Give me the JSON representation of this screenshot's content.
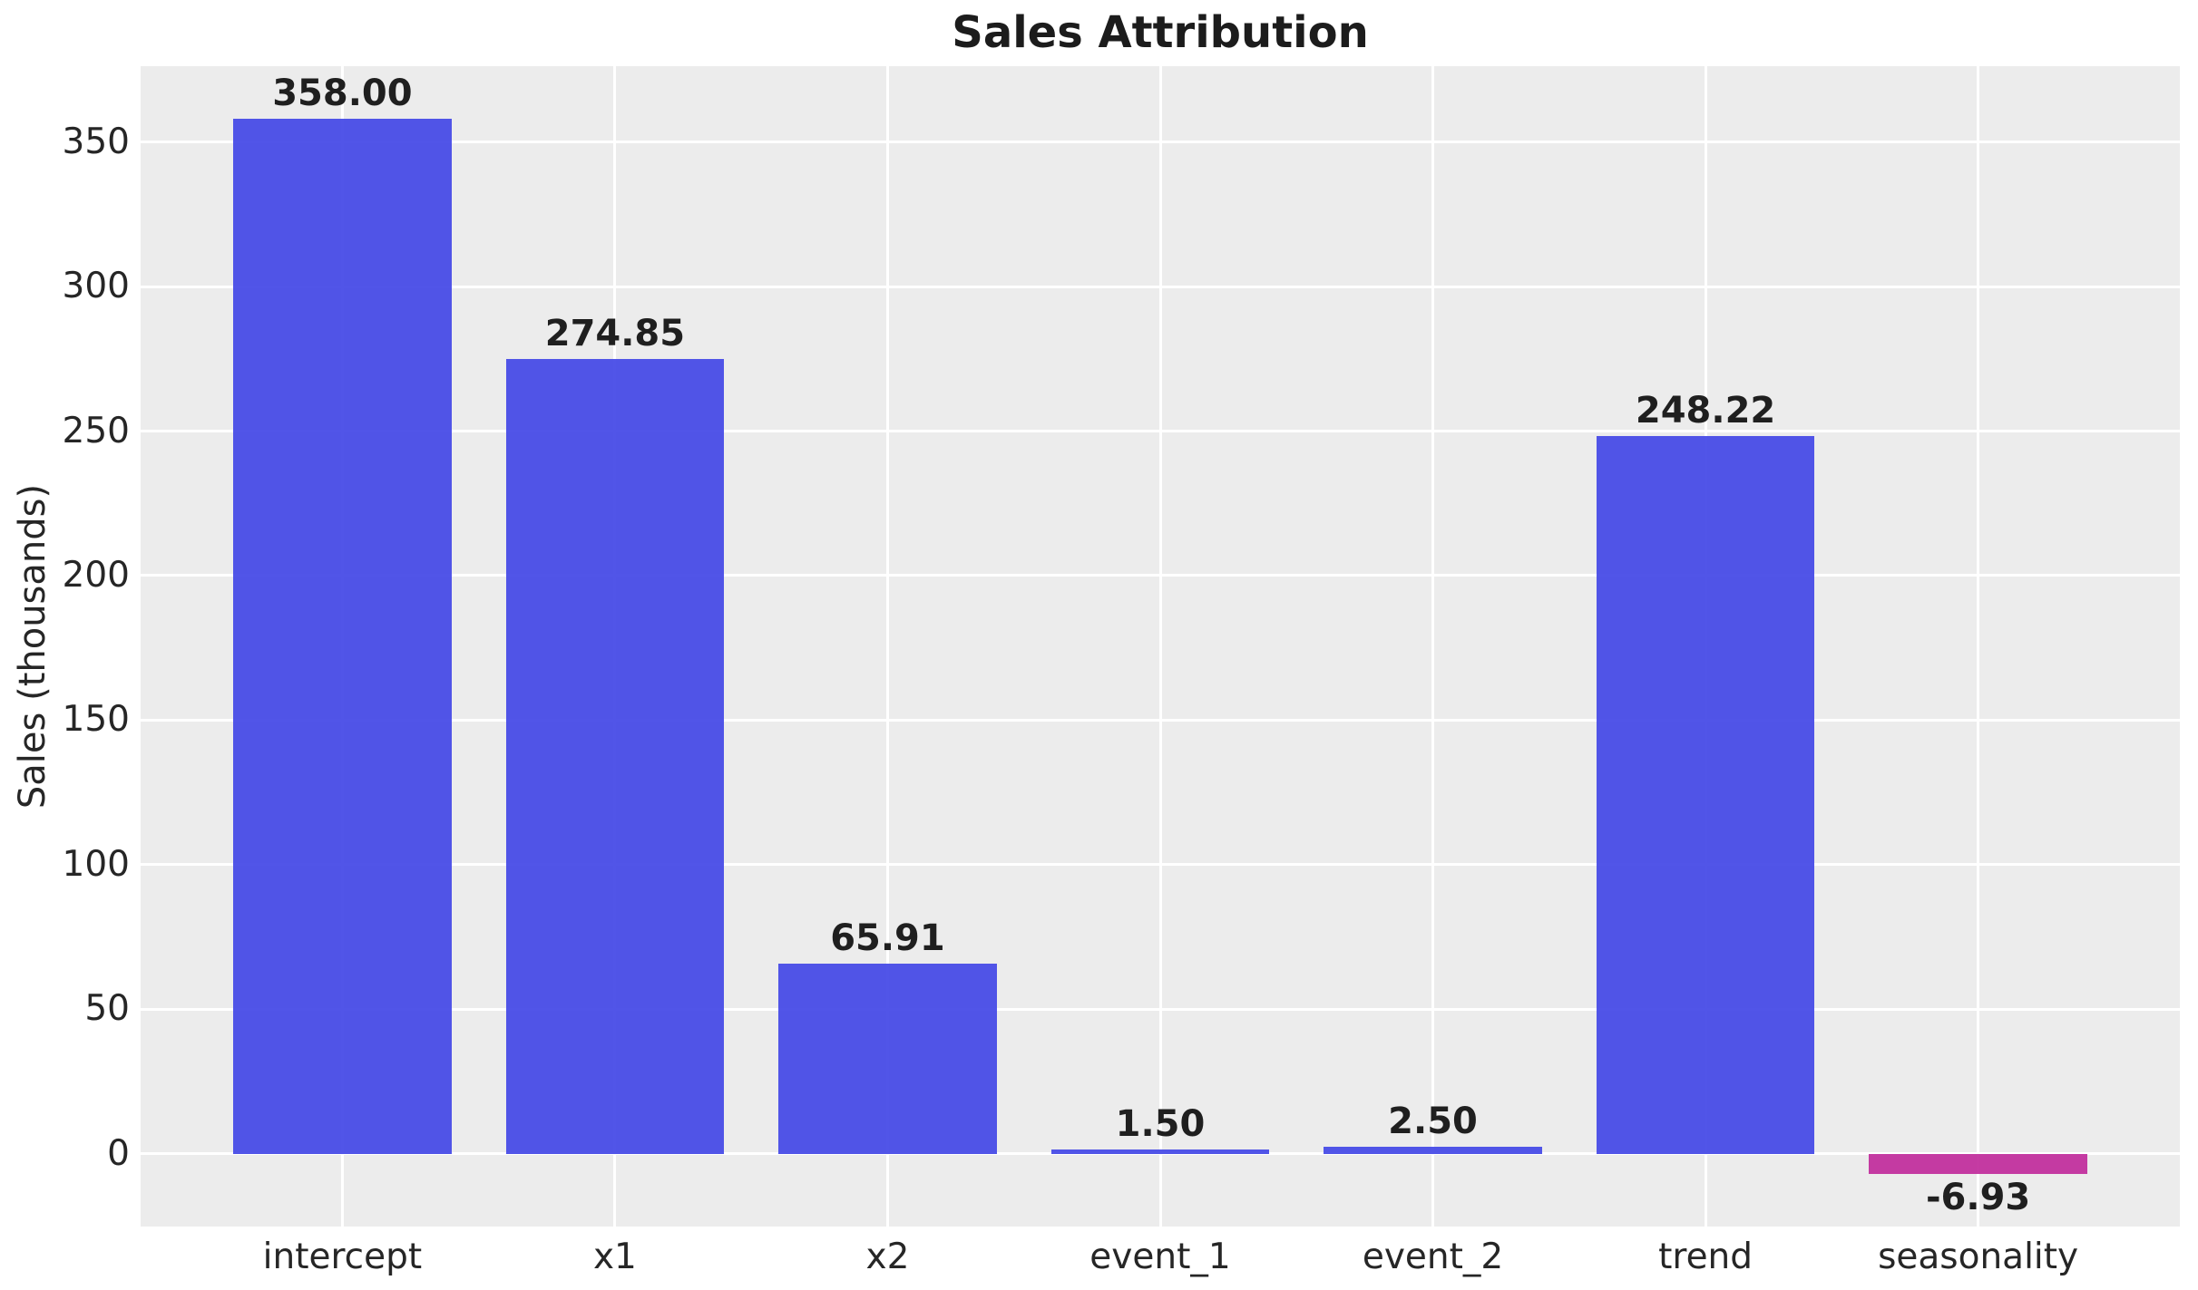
{
  "chart_data": {
    "type": "bar",
    "title": "Sales Attribution",
    "xlabel": "",
    "ylabel": "Sales (thousands)",
    "categories": [
      "intercept",
      "x1",
      "x2",
      "event_1",
      "event_2",
      "trend",
      "seasonality"
    ],
    "values": [
      358.0,
      274.85,
      65.91,
      1.5,
      2.5,
      248.22,
      -6.93
    ],
    "value_labels": [
      "358.00",
      "274.85",
      "65.91",
      "1.50",
      "2.50",
      "248.22",
      "-6.93"
    ],
    "bar_colors": [
      "#464AE7",
      "#464AE7",
      "#464AE7",
      "#464AE7",
      "#464AE7",
      "#464AE7",
      "#C12F9D"
    ],
    "bar_alpha": 0.94,
    "yticks": [
      0,
      50,
      100,
      150,
      200,
      250,
      300,
      350
    ],
    "ylim": [
      -25.18,
      376.25
    ],
    "xlim": [
      -0.74,
      6.74
    ],
    "bar_width_fraction": 0.8,
    "grid": true,
    "gridline_color": "#FFFFFF",
    "plot_background": "#ECECEC",
    "figure_background": "#FFFFFF",
    "text_color": "#262626",
    "title_color": "#1c1c1c",
    "legend": null
  }
}
